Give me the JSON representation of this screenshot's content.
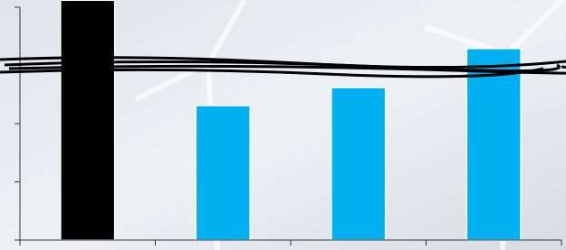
{
  "chart_data": {
    "type": "bar",
    "categories": [
      null,
      null,
      null,
      null
    ],
    "values": [
      4.12,
      2.31,
      2.62,
      3.29
    ],
    "colors": [
      "#000000",
      "#00b0f0",
      "#00b0f0",
      "#00b0f0"
    ],
    "ylim": [
      0,
      4
    ],
    "yticks": [
      0,
      1,
      2,
      3,
      4
    ]
  }
}
